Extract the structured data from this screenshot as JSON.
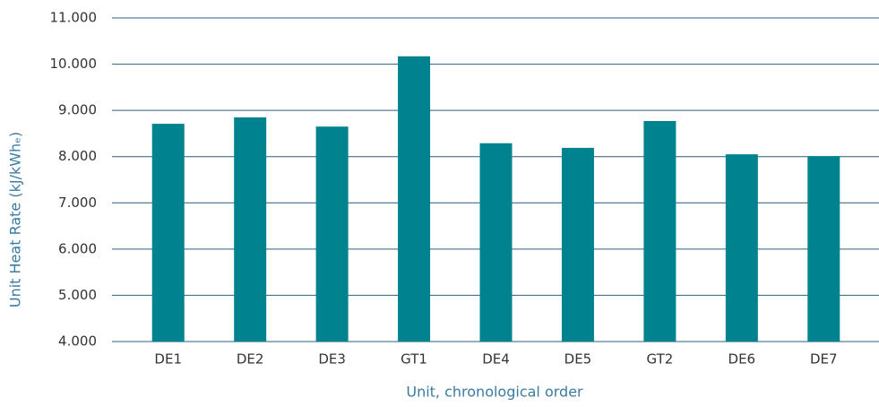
{
  "chart_data": {
    "type": "bar",
    "xlabel": "Unit, chronological order",
    "ylabel": "Unit Heat Rate (kJ/kWhₑ)",
    "categories": [
      "DE1",
      "DE2",
      "DE3",
      "GT1",
      "DE4",
      "DE5",
      "GT2",
      "DE6",
      "DE7"
    ],
    "values": [
      8710,
      8850,
      8650,
      10170,
      8290,
      8190,
      8770,
      8050,
      8010
    ],
    "color": "#00838f",
    "ylim": [
      4000,
      11000
    ],
    "yticks": [
      {
        "value": 4000,
        "label": "4.000"
      },
      {
        "value": 5000,
        "label": "5.000"
      },
      {
        "value": 6000,
        "label": "6.000"
      },
      {
        "value": 7000,
        "label": "7.000"
      },
      {
        "value": 8000,
        "label": "8.000"
      },
      {
        "value": 9000,
        "label": "9.000"
      },
      {
        "value": 10000,
        "label": "10.000"
      },
      {
        "value": 11000,
        "label": "11.000"
      }
    ],
    "grid": true
  }
}
